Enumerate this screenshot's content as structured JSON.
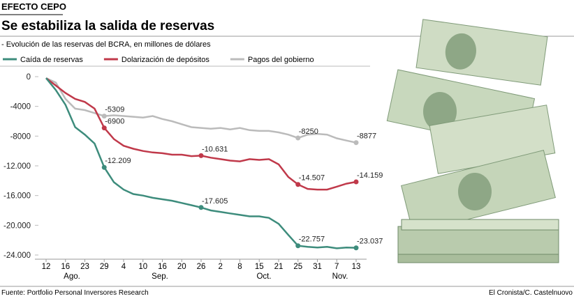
{
  "chart_data": {
    "type": "line",
    "kicker": "EFECTO CEPO",
    "title": "Se estabiliza la salida de reservas",
    "subtitle": "- Evolución de las reservas del BCRA, en millones de dólares",
    "source": "Fuente: Portfolio Personal Inversores Research",
    "credit": "El Cronista/C. Castelnuovo",
    "categories": [
      "12",
      null,
      "16",
      null,
      "23",
      null,
      "29",
      null,
      "4",
      null,
      "10",
      null,
      "16",
      null,
      "20",
      null,
      "26",
      null,
      "2",
      null,
      "8",
      null,
      "15",
      null,
      "21",
      null,
      "25",
      null,
      "31",
      null,
      "7",
      null,
      "13"
    ],
    "month_labels": [
      "Ago.",
      "Sep.",
      "Oct.",
      "Nov."
    ],
    "ylim": [
      0,
      -24000
    ],
    "yticks": [
      0,
      -4000,
      -8000,
      {
        "value": -12000,
        "label": "-12.000"
      },
      {
        "value": -16000,
        "label": "-16.000"
      },
      {
        "value": -20000,
        "label": "-20.000"
      },
      {
        "value": -24000,
        "label": "-24.000"
      }
    ],
    "legend": "top",
    "series": [
      {
        "name": "Caída de reservas",
        "color": "#3d8c7c",
        "values": [
          -200,
          -1800,
          -3800,
          -6800,
          -7800,
          -9000,
          -12209,
          -14200,
          -15200,
          -15800,
          -16000,
          -16300,
          -16500,
          -16700,
          -17000,
          -17300,
          -17605,
          -18000,
          -18200,
          -18400,
          -18600,
          -18800,
          -18800,
          -19000,
          -19800,
          -21300,
          -22757,
          -22900,
          -23000,
          -22900,
          -23100,
          -23000,
          -23037
        ],
        "value_labels": [
          null,
          null,
          null,
          null,
          null,
          null,
          "-12.209",
          null,
          null,
          null,
          null,
          null,
          null,
          null,
          null,
          null,
          "-17.605",
          null,
          null,
          null,
          null,
          null,
          null,
          null,
          null,
          null,
          "-22.757",
          null,
          null,
          null,
          null,
          null,
          "-23.037"
        ]
      },
      {
        "name": "Dolarización de depósitos",
        "color": "#c0394a",
        "values": [
          -200,
          -1200,
          -2200,
          -3000,
          -3400,
          -4300,
          -6900,
          -8400,
          -9300,
          -9700,
          -10000,
          -10200,
          -10300,
          -10500,
          -10500,
          -10700,
          -10631,
          -10900,
          -11100,
          -11300,
          -11400,
          -11100,
          -11200,
          -11100,
          -11800,
          -13500,
          -14507,
          -15100,
          -15200,
          -15200,
          -14800,
          -14400,
          -14159
        ],
        "value_labels": [
          null,
          null,
          null,
          null,
          null,
          null,
          "-6900",
          null,
          null,
          null,
          null,
          null,
          null,
          null,
          null,
          null,
          "-10.631",
          null,
          null,
          null,
          null,
          null,
          null,
          null,
          null,
          null,
          "-14.507",
          null,
          null,
          null,
          null,
          null,
          "-14.159"
        ]
      },
      {
        "name": "Pagos del gobierno",
        "color": "#bbbbbb",
        "values": [
          -200,
          -800,
          -3000,
          -4300,
          -4500,
          -4900,
          -5309,
          -5200,
          -5300,
          -5400,
          -5500,
          -5300,
          -5700,
          -6000,
          -6400,
          -6800,
          -6900,
          -7000,
          -6900,
          -7100,
          -6900,
          -7200,
          -7300,
          -7300,
          -7500,
          -7800,
          -8250,
          -7800,
          -7700,
          -7800,
          -8300,
          -8600,
          -8877
        ],
        "value_labels": [
          null,
          null,
          null,
          null,
          null,
          null,
          "-5309",
          null,
          null,
          null,
          null,
          null,
          null,
          null,
          null,
          null,
          null,
          null,
          null,
          null,
          null,
          null,
          null,
          null,
          null,
          null,
          "-8250",
          null,
          null,
          null,
          null,
          null,
          "-8877"
        ]
      }
    ]
  }
}
